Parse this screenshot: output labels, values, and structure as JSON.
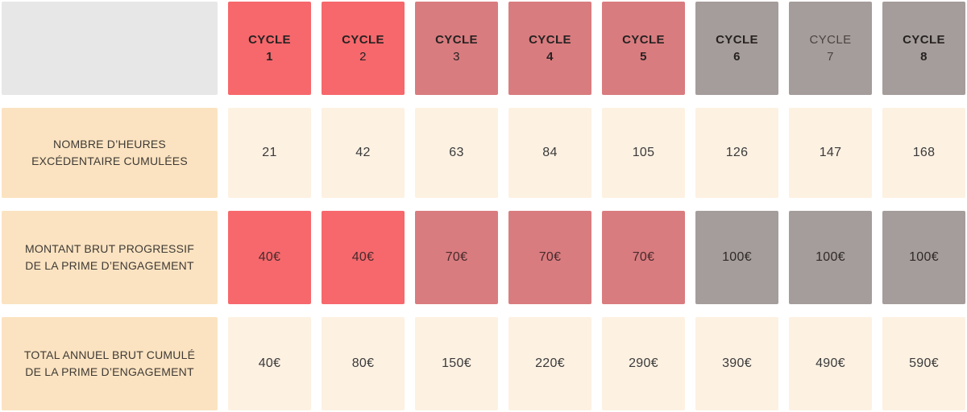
{
  "colors": {
    "red": "#f6686c",
    "rose": "#d97c7f",
    "gray": "#a59d9b",
    "peach": "#fbe3c1",
    "cream": "#fdf1e2",
    "corner": "#e8e7e7"
  },
  "table": {
    "corner": "",
    "cycles": [
      {
        "word": "CYCLE",
        "number": "1",
        "tone": "red",
        "word_bold": true,
        "number_bold": true,
        "muted": false
      },
      {
        "word": "CYCLE",
        "number": "2",
        "tone": "red",
        "word_bold": true,
        "number_bold": false,
        "muted": false
      },
      {
        "word": "CYCLE",
        "number": "3",
        "tone": "rose",
        "word_bold": true,
        "number_bold": false,
        "muted": false
      },
      {
        "word": "CYCLE",
        "number": "4",
        "tone": "rose",
        "word_bold": true,
        "number_bold": true,
        "muted": false
      },
      {
        "word": "CYCLE",
        "number": "5",
        "tone": "rose",
        "word_bold": true,
        "number_bold": true,
        "muted": false
      },
      {
        "word": "CYCLE",
        "number": "6",
        "tone": "gray",
        "word_bold": true,
        "number_bold": true,
        "muted": false
      },
      {
        "word": "CYCLE",
        "number": "7",
        "tone": "gray",
        "word_bold": false,
        "number_bold": false,
        "muted": true
      },
      {
        "word": "CYCLE",
        "number": "8",
        "tone": "gray",
        "word_bold": true,
        "number_bold": true,
        "muted": false
      }
    ],
    "rows": [
      {
        "label": "NOMBRE D’HEURES EXCÉDENTAIRE CUMULÉES",
        "values": [
          "21",
          "42",
          "63",
          "84",
          "105",
          "126",
          "147",
          "168"
        ]
      },
      {
        "label": "MONTANT BRUT PROGRESSIF DE LA PRIME D’ENGAGEMENT",
        "values": [
          "40€",
          "40€",
          "70€",
          "70€",
          "70€",
          "100€",
          "100€",
          "100€"
        ]
      },
      {
        "label": "TOTAL ANNUEL BRUT CUMULÉ DE LA PRIME D’ENGAGEMENT",
        "values": [
          "40€",
          "80€",
          "150€",
          "220€",
          "290€",
          "390€",
          "490€",
          "590€"
        ]
      }
    ]
  },
  "chart_data": {
    "type": "table",
    "columns": [
      "CYCLE 1",
      "CYCLE 2",
      "CYCLE 3",
      "CYCLE 4",
      "CYCLE 5",
      "CYCLE 6",
      "CYCLE 7",
      "CYCLE 8"
    ],
    "rows": [
      {
        "label": "NOMBRE D’HEURES EXCÉDENTAIRE CUMULÉES",
        "values": [
          21,
          42,
          63,
          84,
          105,
          126,
          147,
          168
        ]
      },
      {
        "label": "MONTANT BRUT PROGRESSIF DE LA PRIME D’ENGAGEMENT",
        "unit": "€",
        "values": [
          40,
          40,
          70,
          70,
          70,
          100,
          100,
          100
        ]
      },
      {
        "label": "TOTAL ANNUEL BRUT CUMULÉ DE LA PRIME D’ENGAGEMENT",
        "unit": "€",
        "values": [
          40,
          80,
          150,
          220,
          290,
          390,
          490,
          590
        ]
      }
    ],
    "layout_hints": {
      "column_group_tones": {
        "CYCLE 1-2": "red",
        "CYCLE 3-5": "rose",
        "CYCLE 6-8": "gray"
      },
      "grid": "cells separated by white gutters"
    }
  }
}
